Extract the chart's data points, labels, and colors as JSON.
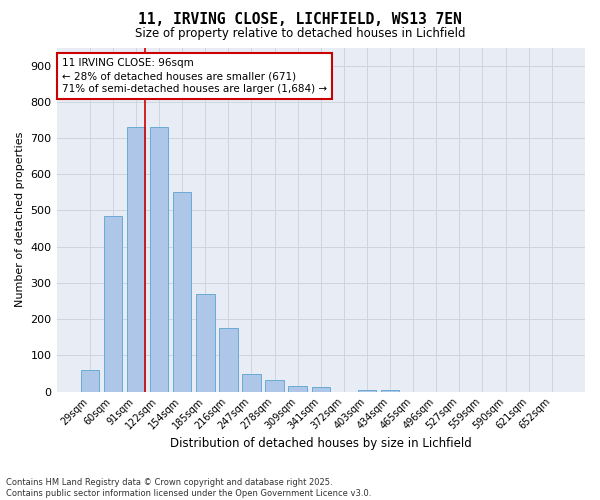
{
  "title": "11, IRVING CLOSE, LICHFIELD, WS13 7EN",
  "subtitle": "Size of property relative to detached houses in Lichfield",
  "xlabel": "Distribution of detached houses by size in Lichfield",
  "ylabel": "Number of detached properties",
  "categories": [
    "29sqm",
    "60sqm",
    "91sqm",
    "122sqm",
    "154sqm",
    "185sqm",
    "216sqm",
    "247sqm",
    "278sqm",
    "309sqm",
    "341sqm",
    "372sqm",
    "403sqm",
    "434sqm",
    "465sqm",
    "496sqm",
    "527sqm",
    "559sqm",
    "590sqm",
    "621sqm",
    "652sqm"
  ],
  "values": [
    60,
    485,
    730,
    730,
    550,
    270,
    175,
    48,
    33,
    15,
    12,
    0,
    5,
    5,
    0,
    0,
    0,
    0,
    0,
    0,
    0
  ],
  "bar_color": "#aec6e8",
  "bar_edge_color": "#6aaad4",
  "vline_x_index": 2,
  "vline_color": "#cc0000",
  "annotation_text": "11 IRVING CLOSE: 96sqm\n← 28% of detached houses are smaller (671)\n71% of semi-detached houses are larger (1,684) →",
  "annotation_box_color": "#ffffff",
  "annotation_box_edge": "#cc0000",
  "ylim": [
    0,
    950
  ],
  "yticks": [
    0,
    100,
    200,
    300,
    400,
    500,
    600,
    700,
    800,
    900
  ],
  "grid_color": "#cdd5e0",
  "bg_color": "#e8edf5",
  "footer_line1": "Contains HM Land Registry data © Crown copyright and database right 2025.",
  "footer_line2": "Contains public sector information licensed under the Open Government Licence v3.0."
}
